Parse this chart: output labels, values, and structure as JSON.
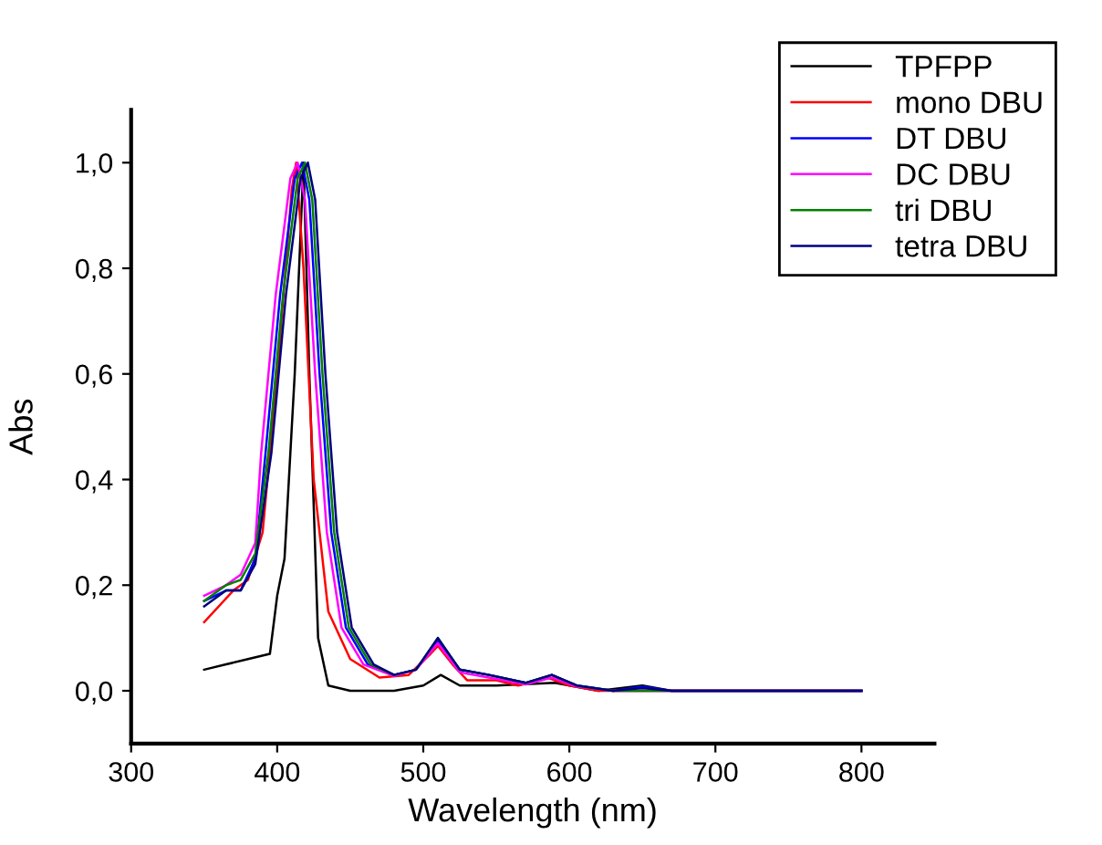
{
  "chart_data": {
    "type": "line",
    "xlabel": "Wavelength (nm)",
    "ylabel": "Abs",
    "xlim": [
      300,
      850
    ],
    "xticks": [
      300,
      400,
      500,
      600,
      700,
      800
    ],
    "ylim": [
      -0.1,
      1.1
    ],
    "yticks": [
      {
        "value": 0,
        "label": "0,0"
      },
      {
        "value": 0.2,
        "label": "0,2"
      },
      {
        "value": 0.4,
        "label": "0,4"
      },
      {
        "value": 0.6,
        "label": "0,6"
      },
      {
        "value": 0.8,
        "label": "0,8"
      },
      {
        "value": 1.0,
        "label": "1,0"
      }
    ],
    "grid": false,
    "legend": "top right",
    "line_style": "solid",
    "series": [
      {
        "name": "TPFPP",
        "color": "#000000",
        "x": [
          350,
          365,
          380,
          395,
          400,
          405,
          412,
          418,
          422,
          428,
          435,
          450,
          480,
          500,
          512,
          525,
          550,
          590,
          620,
          650,
          670,
          800
        ],
        "values": [
          0.04,
          0.05,
          0.06,
          0.07,
          0.18,
          0.25,
          0.6,
          1.0,
          0.6,
          0.1,
          0.01,
          0.0,
          0.0,
          0.01,
          0.03,
          0.01,
          0.01,
          0.015,
          0.0,
          0.01,
          0.0,
          0.0
        ]
      },
      {
        "name": "mono DBU",
        "color": "#ff0000",
        "x": [
          350,
          370,
          380,
          390,
          400,
          410,
          413,
          418,
          425,
          435,
          450,
          470,
          490,
          505,
          510,
          520,
          530,
          550,
          565,
          585,
          600,
          620,
          800
        ],
        "values": [
          0.13,
          0.19,
          0.21,
          0.3,
          0.6,
          0.95,
          1.0,
          0.8,
          0.4,
          0.15,
          0.06,
          0.025,
          0.03,
          0.07,
          0.085,
          0.05,
          0.02,
          0.02,
          0.01,
          0.025,
          0.01,
          0.0,
          0.0
        ]
      },
      {
        "name": "DT DBU",
        "color": "#0000ff",
        "x": [
          350,
          365,
          375,
          385,
          392,
          402,
          412,
          417,
          422,
          429,
          437,
          447,
          462,
          480,
          495,
          510,
          525,
          545,
          570,
          588,
          605,
          630,
          650,
          670,
          800
        ],
        "values": [
          0.17,
          0.19,
          0.19,
          0.25,
          0.45,
          0.75,
          0.97,
          1.0,
          0.93,
          0.6,
          0.3,
          0.12,
          0.05,
          0.03,
          0.04,
          0.095,
          0.04,
          0.03,
          0.015,
          0.03,
          0.01,
          0.0,
          0.008,
          0.0,
          0.0
        ]
      },
      {
        "name": "DC DBU",
        "color": "#ff00ff",
        "x": [
          350,
          365,
          375,
          385,
          389,
          399,
          409,
          414,
          419,
          426,
          434,
          444,
          459,
          480,
          495,
          510,
          525,
          545,
          570,
          588,
          605,
          630,
          800
        ],
        "values": [
          0.18,
          0.2,
          0.22,
          0.28,
          0.45,
          0.75,
          0.97,
          1.0,
          0.93,
          0.6,
          0.3,
          0.12,
          0.05,
          0.028,
          0.04,
          0.09,
          0.035,
          0.025,
          0.012,
          0.025,
          0.008,
          0.0,
          0.0
        ]
      },
      {
        "name": "tri DBU",
        "color": "#008000",
        "x": [
          350,
          365,
          375,
          385,
          394,
          404,
          414,
          419,
          424,
          431,
          439,
          449,
          464,
          480,
          495,
          510,
          525,
          545,
          570,
          588,
          605,
          630,
          800
        ],
        "values": [
          0.17,
          0.2,
          0.21,
          0.26,
          0.45,
          0.75,
          0.97,
          1.0,
          0.93,
          0.6,
          0.3,
          0.12,
          0.05,
          0.03,
          0.04,
          0.1,
          0.04,
          0.03,
          0.015,
          0.03,
          0.01,
          0.0,
          0.0
        ]
      },
      {
        "name": "tetra DBU",
        "color": "#000080",
        "x": [
          350,
          365,
          375,
          385,
          396,
          406,
          416,
          421,
          426,
          433,
          441,
          451,
          466,
          480,
          495,
          510,
          525,
          545,
          570,
          588,
          605,
          630,
          650,
          670,
          800
        ],
        "values": [
          0.16,
          0.19,
          0.19,
          0.24,
          0.45,
          0.75,
          0.97,
          1.0,
          0.93,
          0.6,
          0.3,
          0.12,
          0.05,
          0.03,
          0.04,
          0.1,
          0.04,
          0.03,
          0.015,
          0.03,
          0.01,
          0.0,
          0.005,
          0.0,
          0.0
        ]
      }
    ]
  }
}
